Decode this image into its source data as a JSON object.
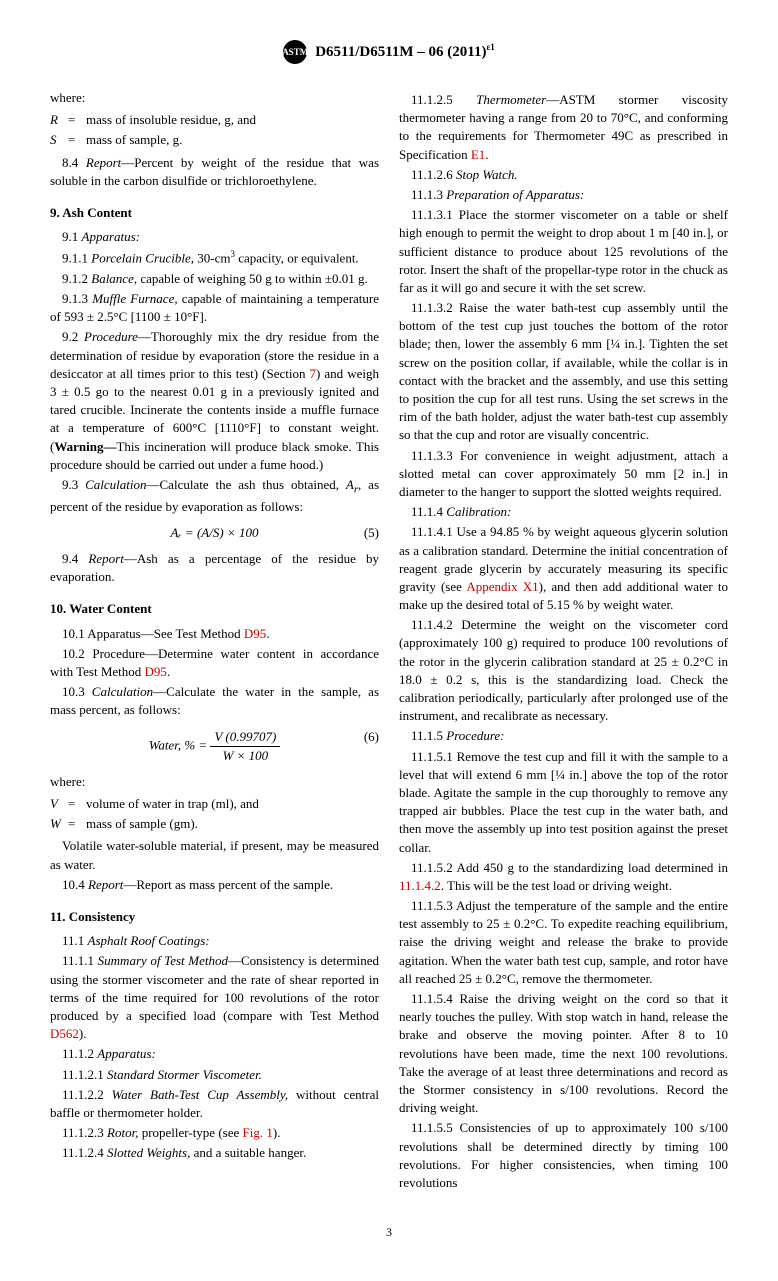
{
  "header": {
    "logo_text": "ASTM",
    "standard": "D6511/D6511M – 06 (2011)",
    "superscript": "ε1"
  },
  "left_col": {
    "where_label": "where:",
    "where_R": {
      "var": "R",
      "def": "mass of insoluble residue, g, and"
    },
    "where_S": {
      "var": "S",
      "def": "mass of sample, g."
    },
    "p8_4": "8.4 Report—Percent by weight of the residue that was soluble in the carbon disulfide or trichloroethylene.",
    "s9": {
      "title": "9. Ash Content",
      "p9_1": "9.1 Apparatus:",
      "p9_1_1": "9.1.1 Porcelain Crucible, 30-cm³ capacity, or equivalent.",
      "p9_1_2": "9.1.2 Balance, capable of weighing 50 g to within ±0.01 g.",
      "p9_1_3": "9.1.3 Muffle Furnace, capable of maintaining a temperature of 593 ± 2.5°C [1100 ± 10°F].",
      "p9_2": "9.2 Procedure—Thoroughly mix the dry residue from the determination of residue by evaporation (store the residue in a desiccator at all times prior to this test) (Section 7) and weigh 3 ± 0.5 go to the nearest 0.01 g in a previously ignited and tared crucible. Incinerate the contents inside a muffle furnace at a temperature of 600°C [1110°F] to constant weight. (Warning—This incineration will produce black smoke. This procedure should be carried out under a fume hood.)",
      "p9_3": "9.3 Calculation—Calculate the ash thus obtained, Aᵣ, as percent of the residue by evaporation as follows:",
      "eq5": "Aᵣ = (A/S) × 100",
      "eq5_num": "(5)",
      "p9_4": "9.4 Report—Ash as a percentage of the residue by evaporation."
    },
    "s10": {
      "title": "10. Water Content",
      "p10_1_a": "10.1 Apparatus—See Test Method ",
      "p10_1_link": "D95",
      "p10_1_b": ".",
      "p10_2_a": "10.2 Procedure—Determine water content in accordance with Test Method ",
      "p10_2_link": "D95",
      "p10_2_b": ".",
      "p10_3": "10.3 Calculation—Calculate the water in the sample, as mass percent, as follows:",
      "eq6_label": "Water, % = ",
      "eq6_top": "V (0.99707)",
      "eq6_bot": "W × 100",
      "eq6_num": "(6)",
      "where2_label": "where:",
      "where_V": {
        "var": "V",
        "def": "volume of water in trap (ml), and"
      },
      "where_W": {
        "var": "W",
        "def": "mass of sample (gm)."
      },
      "p10_volatile": "Volatile water-soluble material, if present, may be measured as water.",
      "p10_4": "10.4 Report—Report as mass percent of the sample."
    },
    "s11": {
      "title": "11. Consistency",
      "p11_1": "11.1 Asphalt Roof Coatings:",
      "p11_1_1_a": "11.1.1 Summary of Test Method—Consistency is determined using the stormer viscometer and the rate of shear reported in terms of the time required for 100 revolutions of the rotor produced by a specified load (compare with Test Method ",
      "p11_1_1_link": "D562",
      "p11_1_1_b": ").",
      "p11_1_2": "11.1.2 Apparatus:",
      "p11_1_2_1": "11.1.2.1 Standard Stormer Viscometer.",
      "p11_1_2_2": "11.1.2.2 Water Bath-Test Cup Assembly, without central baffle or thermometer holder.",
      "p11_1_2_3_a": "11.1.2.3 Rotor, propeller-type (see ",
      "p11_1_2_3_link": "Fig. 1",
      "p11_1_2_3_b": ").",
      "p11_1_2_4": "11.1.2.4 Slotted Weights, and a suitable hanger."
    }
  },
  "right_col": {
    "p11_1_2_5_a": "11.1.2.5 Thermometer—ASTM stormer viscosity thermometer having a range from 20 to 70°C, and conforming to the requirements for Thermometer 49C as prescribed in Specification ",
    "p11_1_2_5_link": "E1",
    "p11_1_2_5_b": ".",
    "p11_1_2_6": "11.1.2.6 Stop Watch.",
    "p11_1_3": "11.1.3 Preparation of Apparatus:",
    "p11_1_3_1": "11.1.3.1 Place the stormer viscometer on a table or shelf high enough to permit the weight to drop about 1 m [40 in.], or sufficient distance to produce about 125 revolutions of the rotor. Insert the shaft of the propellar-type rotor in the chuck as far as it will go and secure it with the set screw.",
    "p11_1_3_2": "11.1.3.2 Raise the water bath-test cup assembly until the bottom of the test cup just touches the bottom of the rotor blade; then, lower the assembly 6 mm [¼ in.]. Tighten the set screw on the position collar, if available, while the collar is in contact with the bracket and the assembly, and use this setting to position the cup for all test runs. Using the set screws in the rim of the bath holder, adjust the water bath-test cup assembly so that the cup and rotor are visually concentric.",
    "p11_1_3_3": "11.1.3.3 For convenience in weight adjustment, attach a slotted metal can cover approximately 50 mm [2 in.] in diameter to the hanger to support the slotted weights required.",
    "p11_1_4": "11.1.4 Calibration:",
    "p11_1_4_1_a": "11.1.4.1 Use a 94.85 % by weight aqueous glycerin solution as a calibration standard. Determine the initial concentration of reagent grade glycerin by accurately measuring its specific gravity (see ",
    "p11_1_4_1_link": "Appendix X1",
    "p11_1_4_1_b": "), and then add additional water to make up the desired total of 5.15 % by weight water.",
    "p11_1_4_2": "11.1.4.2 Determine the weight on the viscometer cord (approximately 100 g) required to produce 100 revolutions of the rotor in the glycerin calibration standard at 25 ± 0.2°C in 18.0 ± 0.2 s, this is the standardizing load. Check the calibration periodically, particularly after prolonged use of the instrument, and recalibrate as necessary.",
    "p11_1_5": "11.1.5 Procedure:",
    "p11_1_5_1": "11.1.5.1 Remove the test cup and fill it with the sample to a level that will extend 6 mm [¼ in.] above the top of the rotor blade. Agitate the sample in the cup thoroughly to remove any trapped air bubbles. Place the test cup in the water bath, and then move the assembly up into test position against the preset collar.",
    "p11_1_5_2_a": "11.1.5.2 Add 450 g to the standardizing load determined in ",
    "p11_1_5_2_link": "11.1.4.2",
    "p11_1_5_2_b": ". This will be the test load or driving weight.",
    "p11_1_5_3": "11.1.5.3 Adjust the temperature of the sample and the entire test assembly to 25 ± 0.2°C. To expedite reaching equilibrium, raise the driving weight and release the brake to provide agitation. When the water bath test cup, sample, and rotor have all reached 25 ± 0.2°C, remove the thermometer.",
    "p11_1_5_4": "11.1.5.4 Raise the driving weight on the cord so that it nearly touches the pulley. With stop watch in hand, release the brake and observe the moving pointer. After 8 to 10 revolutions have been made, time the next 100 revolutions. Take the average of at least three determinations and record as the Stormer consistency in s/100 revolutions. Record the driving weight.",
    "p11_1_5_5": "11.1.5.5 Consistencies of up to approximately 100 s/100 revolutions shall be determined directly by timing 100 revolutions. For higher consistencies, when timing 100 revolutions"
  },
  "page_number": "3"
}
